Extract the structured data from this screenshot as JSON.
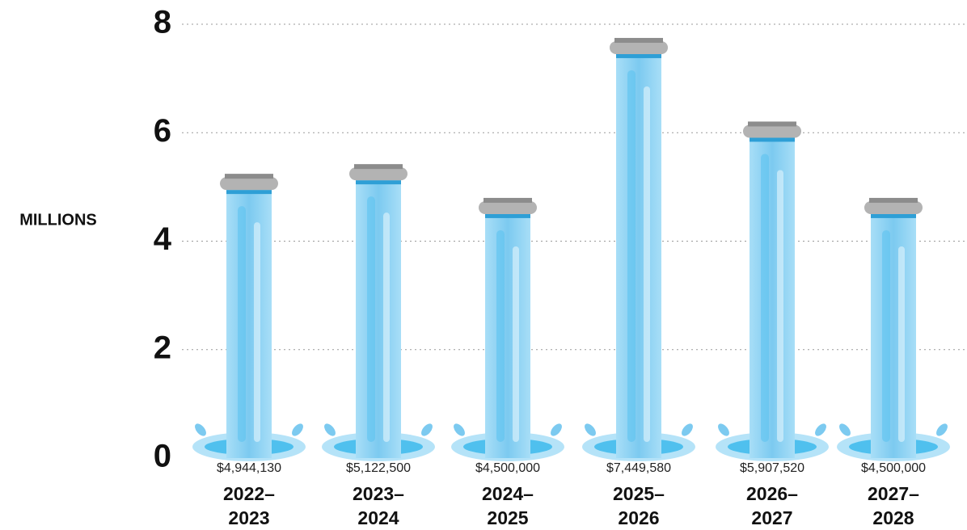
{
  "chart_data": {
    "type": "bar",
    "y_label": "MILLIONS",
    "categories": [
      "2022–2023",
      "2023–2024",
      "2024–2025",
      "2025–2026",
      "2026–2027",
      "2027–2028"
    ],
    "values": [
      4.94413,
      5.1225,
      4.5,
      7.44958,
      5.90752,
      4.5
    ],
    "value_labels": [
      "$4,944,130",
      "$5,122,500",
      "$4,500,000",
      "$7,449,580",
      "$5,907,520",
      "$4,500,000"
    ],
    "color": "#8fd3f4",
    "ylim": [
      0,
      8
    ],
    "yticks": [
      0,
      2,
      4,
      6,
      8
    ],
    "grid": true
  }
}
